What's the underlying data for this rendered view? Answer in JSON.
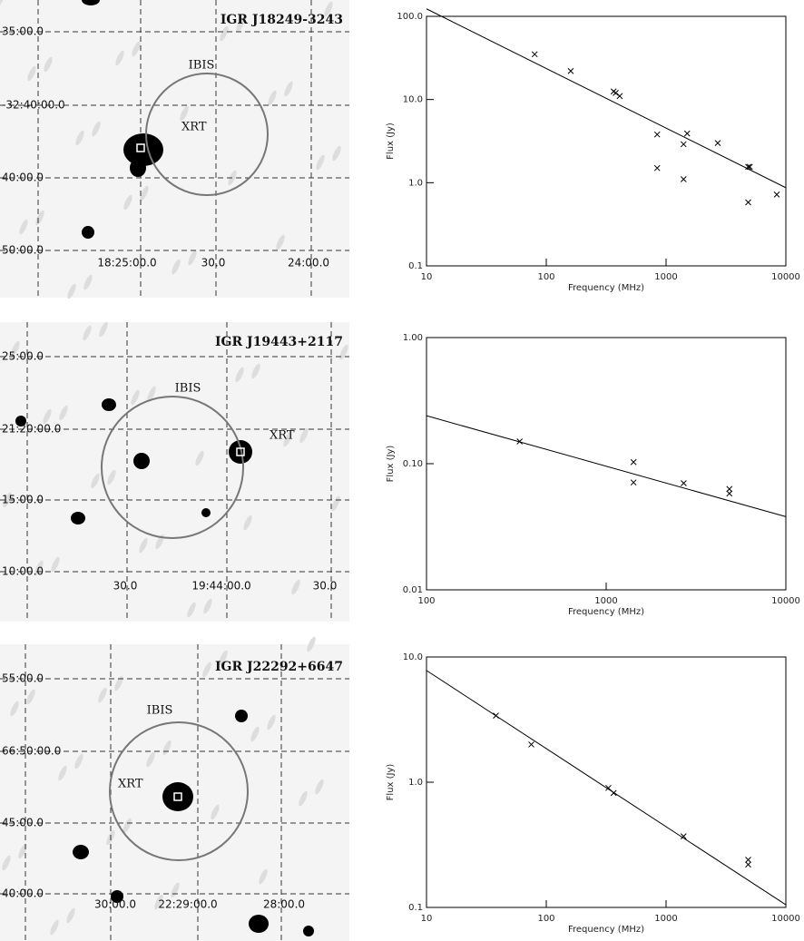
{
  "sky_images": [
    {
      "title": "IGR J18249-3243",
      "circle_label": "IBIS",
      "source_label": "XRT",
      "dec_labels": [
        "35:00.0",
        "-32:40:00.0",
        "40:00.0",
        "50:00.0"
      ],
      "ra_labels": [
        "18:25:00.0",
        "30.0",
        "24:00.0"
      ]
    },
    {
      "title": "IGR J19443+2117",
      "circle_label": "IBIS",
      "source_label": "XRT",
      "dec_labels": [
        "25:00.0",
        "21:20:00.0",
        "15:00.0",
        "10:00.0"
      ],
      "ra_labels": [
        "30.0",
        "19:44:00.0",
        "30.0"
      ]
    },
    {
      "title": "IGR J22292+6647",
      "circle_label": "IBIS",
      "source_label": "XRT",
      "dec_labels": [
        "55:00.0",
        "66:50:00.0",
        "45:00.0",
        "40:00.0"
      ],
      "ra_labels": [
        "30:00.0",
        "22:29:00.0",
        "28:00.0"
      ]
    }
  ],
  "chart_data": [
    {
      "type": "scatter",
      "x_label": "Frequency (MHz)",
      "y_label": "Flux (Jy)",
      "xlog": true,
      "ylog": true,
      "x": [
        80,
        160,
        365,
        380,
        410,
        843,
        843,
        1400,
        1400,
        1500,
        2700,
        4850,
        5000,
        4850,
        8400
      ],
      "values": [
        35,
        22,
        12.5,
        12,
        11,
        3.8,
        1.5,
        2.9,
        1.1,
        3.9,
        3.0,
        1.55,
        1.55,
        0.58,
        0.72
      ],
      "fit": {
        "x": [
          10,
          10000
        ],
        "values": [
          123,
          0.87
        ]
      },
      "xlim": [
        10,
        10000
      ],
      "ylim": [
        0.1,
        100
      ],
      "xticks": [
        10,
        100,
        1000,
        10000
      ],
      "yticks": [
        0.1,
        {
          "value": 1,
          "label": "1.0"
        },
        {
          "value": 10,
          "label": "10.0"
        },
        {
          "value": 100,
          "label": "100.0"
        }
      ]
    },
    {
      "type": "scatter",
      "x_label": "Frequency (MHz)",
      "y_label": "Flux (Jy)",
      "xlog": true,
      "ylog": true,
      "x": [
        330,
        1420,
        1420,
        2700,
        4850,
        4850
      ],
      "values": [
        0.15,
        0.103,
        0.071,
        0.07,
        0.063,
        0.058
      ],
      "fit": {
        "x": [
          100,
          10000
        ],
        "values": [
          0.24,
          0.038
        ]
      },
      "xlim": [
        100,
        10000
      ],
      "ylim": [
        0.01,
        1
      ],
      "xticks": [
        100,
        1000,
        10000
      ],
      "yticks": [
        0.01,
        {
          "value": 0.1,
          "label": "0.10"
        },
        {
          "value": 1,
          "label": "1.00"
        }
      ]
    },
    {
      "type": "scatter",
      "x_label": "Frequency (MHz)",
      "y_label": "Flux (Jy)",
      "xlog": true,
      "ylog": true,
      "x": [
        38,
        75,
        330,
        365,
        1400,
        4850,
        4850
      ],
      "values": [
        3.4,
        2.0,
        0.9,
        0.82,
        0.37,
        0.24,
        0.22
      ],
      "fit": {
        "x": [
          10,
          10000
        ],
        "values": [
          7.8,
          0.105
        ]
      },
      "xlim": [
        10,
        10000
      ],
      "ylim": [
        0.1,
        10
      ],
      "xticks": [
        10,
        100,
        1000,
        10000
      ],
      "yticks": [
        0.1,
        {
          "value": 1,
          "label": "1.0"
        },
        {
          "value": 10,
          "label": "10.0"
        }
      ]
    }
  ]
}
